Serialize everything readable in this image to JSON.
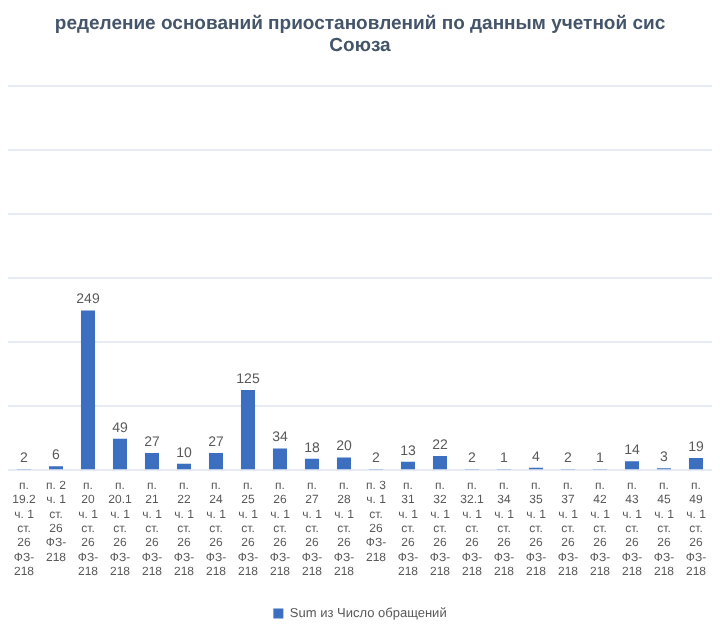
{
  "chart_data": {
    "type": "bar",
    "title": "ределение оснований приостановлений по данным учетной сис Союза",
    "categories": [
      "п. 19.2 ч. 1 ст. 26 ФЗ-218",
      "п. 2 ч. 1 ст. 26 ФЗ-218",
      "п. 20 ч. 1 ст. 26 ФЗ-218",
      "п. 20.1 ч. 1 ст. 26 ФЗ-218",
      "п. 21 ч. 1 ст. 26 ФЗ-218",
      "п. 22 ч. 1 ст. 26 ФЗ-218",
      "п. 24 ч. 1 ст. 26 ФЗ-218",
      "п. 25 ч. 1 ст. 26 ФЗ-218",
      "п. 26 ч. 1 ст. 26 ФЗ-218",
      "п. 27 ч. 1 ст. 26 ФЗ-218",
      "п. 28 ч. 1 ст. 26 ФЗ-218",
      "п. 3 ч. 1 ст. 26 ФЗ-218",
      "п. 31 ч. 1 ст. 26 ФЗ-218",
      "п. 32 ч. 1 ст. 26 ФЗ-218",
      "п. 32.1 ч. 1 ст. 26 ФЗ-218",
      "п. 34 ч. 1 ст. 26 ФЗ-218",
      "п. 35 ч. 1 ст. 26 ФЗ-218",
      "п. 37 ч. 1 ст. 26 ФЗ-218",
      "п. 42 ч. 1 ст. 26 ФЗ-218",
      "п. 43 ч. 1 ст. 26 ФЗ-218",
      "п. 45 ч. 1 ст. 26 ФЗ-218",
      "п. 49 ч. 1 ст. 26 ФЗ-218"
    ],
    "series": [
      {
        "name": "Sum из Число обращений",
        "color": "#3d6fc0",
        "values": [
          2,
          6,
          249,
          49,
          27,
          10,
          27,
          125,
          34,
          18,
          20,
          2,
          13,
          22,
          2,
          1,
          4,
          2,
          1,
          14,
          3,
          19
        ]
      }
    ],
    "ylim": [
      0,
      600
    ],
    "yticks": [
      {
        "value": 0,
        "label": null
      },
      {
        "value": 100,
        "label": null
      },
      {
        "value": 200,
        "label": null
      },
      {
        "value": 300,
        "label": null
      },
      {
        "value": 400,
        "label": null
      },
      {
        "value": 500,
        "label": null
      },
      {
        "value": 600,
        "label": null
      }
    ],
    "tick_labels": "x",
    "grid": "y",
    "legend": "bottom",
    "data_labels": true
  }
}
